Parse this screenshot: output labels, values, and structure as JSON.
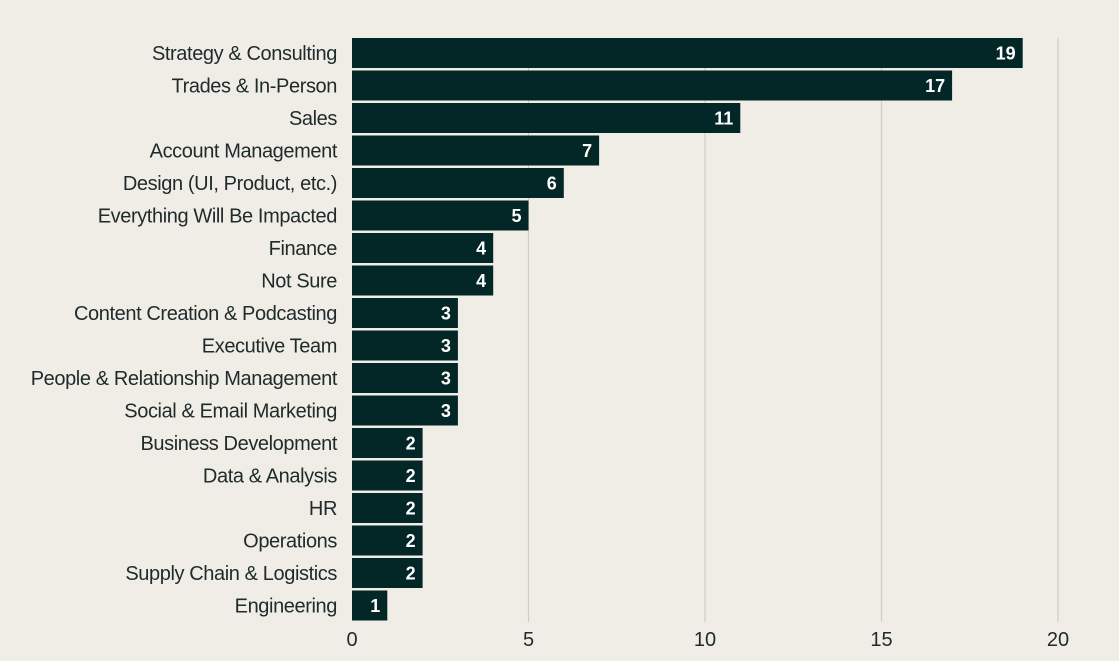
{
  "chart_data": {
    "type": "bar",
    "orientation": "horizontal",
    "categories": [
      "Strategy & Consulting",
      "Trades & In-Person",
      "Sales",
      "Account Management",
      "Design (UI, Product, etc.)",
      "Everything Will Be Impacted",
      "Finance",
      "Not Sure",
      "Content Creation & Podcasting",
      "Executive Team",
      "People & Relationship Management",
      "Social & Email Marketing",
      "Business Development",
      "Data & Analysis",
      "HR",
      "Operations",
      "Supply Chain & Logistics",
      "Engineering"
    ],
    "values": [
      19,
      17,
      11,
      7,
      6,
      5,
      4,
      4,
      3,
      3,
      3,
      3,
      2,
      2,
      2,
      2,
      2,
      1
    ],
    "x_ticks": [
      "0",
      "5",
      "10",
      "15",
      "20"
    ],
    "xlim": [
      0,
      20
    ],
    "grid": "vertical",
    "legend": "none",
    "colors": {
      "background": "#efede6",
      "bar": "#032626",
      "bar_label": "#ffffff",
      "text": "#1f2a2a",
      "grid": "#cfcdc6"
    }
  }
}
